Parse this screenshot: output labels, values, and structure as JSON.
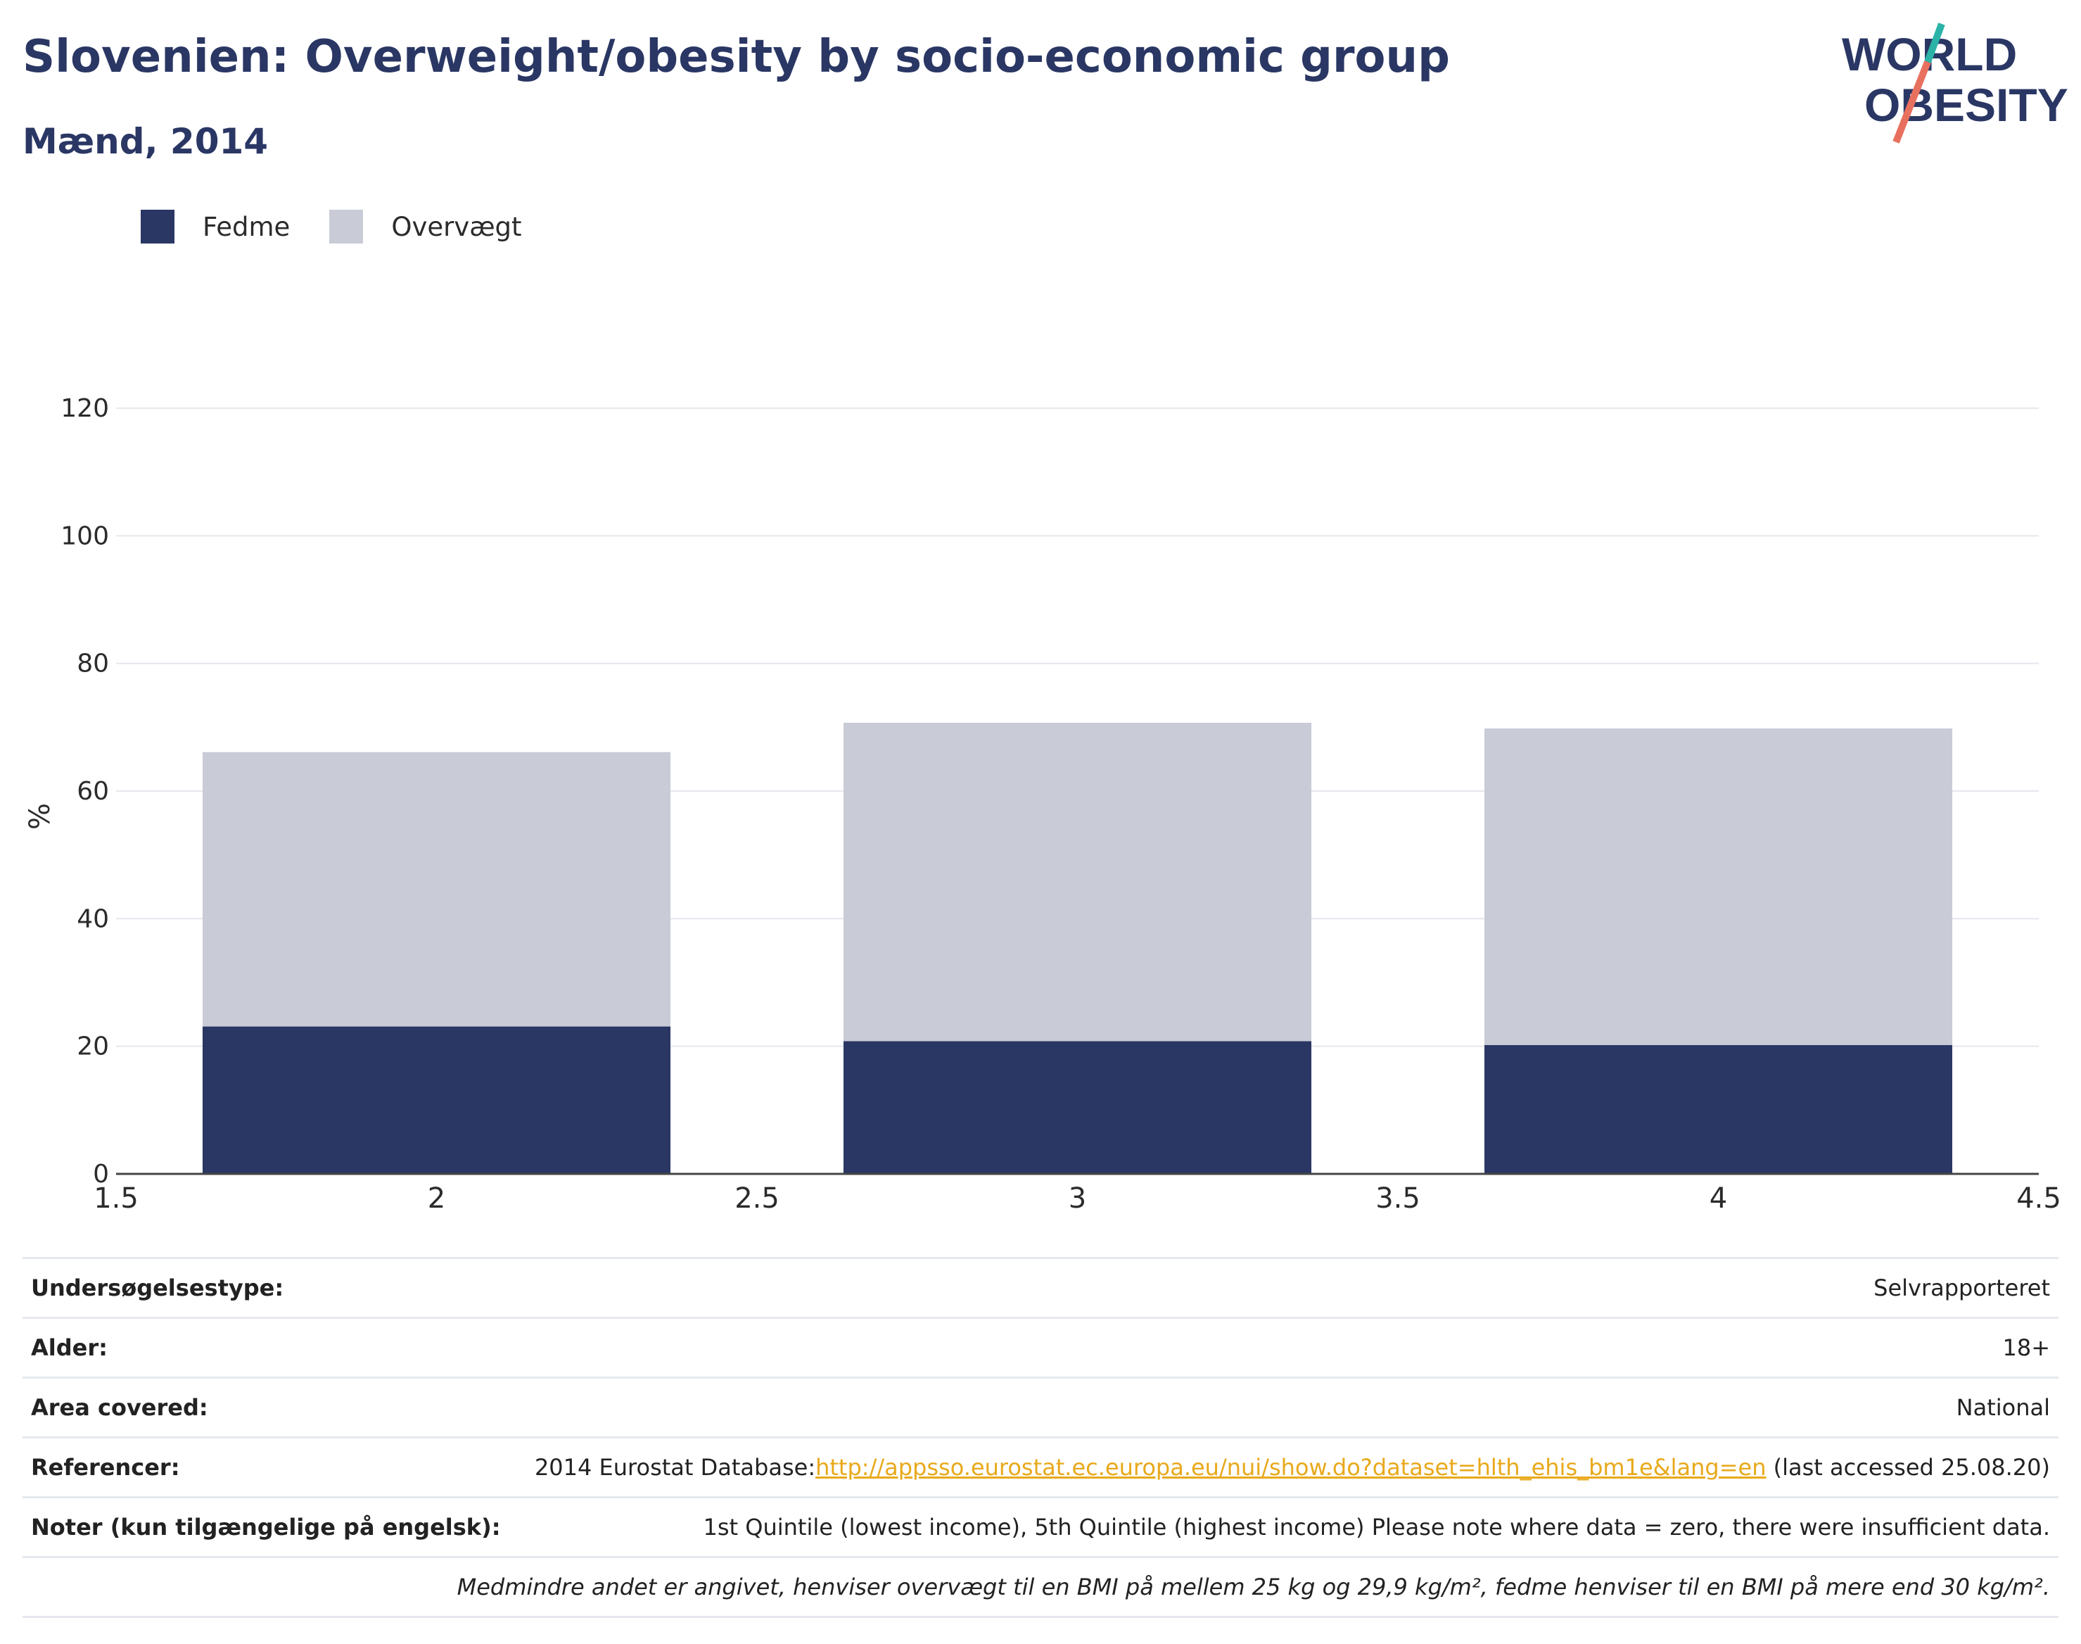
{
  "header": {
    "title": "Slovenien: Overweight/obesity by socio-economic group",
    "subtitle": "Mænd, 2014"
  },
  "logo": {
    "line1": "WORLD",
    "line2": "OBESITY",
    "accent_teal": "#2bb3a7",
    "accent_coral": "#e8705f",
    "text_color": "#2a3764"
  },
  "chart_data": {
    "type": "bar",
    "stacked": true,
    "x": [
      2,
      3,
      4
    ],
    "series": [
      {
        "name": "Fedme",
        "color": "#2a3764",
        "values": [
          23.1,
          20.8,
          20.2
        ]
      },
      {
        "name": "Overvægt",
        "color": "#c9cbd6",
        "values": [
          43.0,
          49.9,
          49.6
        ]
      }
    ],
    "ylabel": "%",
    "xlabel": "",
    "xlim": [
      1.5,
      4.5
    ],
    "ylim": [
      0,
      120
    ],
    "xticks": [
      "1.5",
      "2",
      "2.5",
      "3",
      "3.5",
      "4",
      "4.5"
    ],
    "yticks": [
      "0",
      "20",
      "40",
      "60",
      "80",
      "100",
      "120"
    ],
    "grid": true,
    "legend_position": "top-left"
  },
  "info": {
    "rows": [
      {
        "label": "Undersøgelsestype:",
        "value": "Selvrapporteret"
      },
      {
        "label": "Alder:",
        "value": "18+"
      },
      {
        "label": "Area covered:",
        "value": "National"
      }
    ],
    "references": {
      "label": "Referencer:",
      "prefix": "2014 Eurostat Database:",
      "link": "http://appsso.eurostat.ec.europa.eu/nui/show.do?dataset=hlth_ehis_bm1e&lang=en",
      "suffix": " (last accessed 25.08.20)"
    },
    "notes": {
      "label": "Noter (kun tilgængelige på engelsk):",
      "value": "1st Quintile (lowest income), 5th Quintile (highest income) Please note where data = zero, there were insufficient data."
    },
    "footnote": "Medmindre andet er angivet, henviser overvægt til en BMI på mellem 25 kg og 29,9 kg/m², fedme henviser til en BMI på mere end 30 kg/m²."
  }
}
